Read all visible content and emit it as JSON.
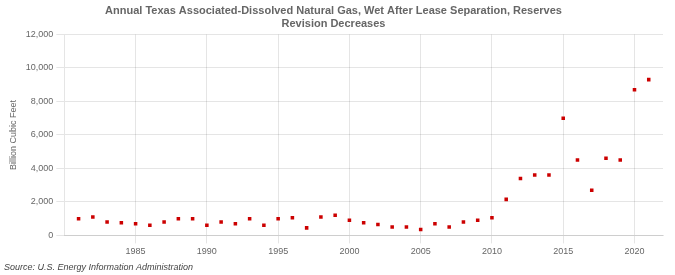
{
  "chart_data": {
    "type": "scatter",
    "title": "Annual Texas Associated-Dissolved Natural Gas, Wet After Lease Separation, Reserves\nRevision Decreases",
    "ylabel": "Billion Cubic Feet",
    "annotations": [
      "Source: U.S. Energy Information Administration"
    ],
    "x": [
      1981,
      1982,
      1983,
      1984,
      1985,
      1986,
      1987,
      1988,
      1989,
      1990,
      1991,
      1992,
      1993,
      1994,
      1995,
      1996,
      1997,
      1998,
      1999,
      2000,
      2001,
      2002,
      2003,
      2004,
      2005,
      2006,
      2007,
      2008,
      2009,
      2010,
      2011,
      2012,
      2013,
      2014,
      2015,
      2016,
      2017,
      2018,
      2019,
      2020,
      2021
    ],
    "values": [
      1000,
      1100,
      800,
      750,
      700,
      600,
      800,
      1000,
      1000,
      600,
      800,
      700,
      1000,
      600,
      1000,
      1050,
      450,
      1100,
      1200,
      900,
      750,
      650,
      500,
      500,
      350,
      700,
      500,
      800,
      900,
      1050,
      2150,
      3400,
      3600,
      3600,
      7000,
      4500,
      2700,
      4600,
      4500,
      8700,
      9300
    ],
    "color": "#cc0000",
    "marker": "square",
    "xlim": [
      1980,
      2022
    ],
    "xticks": [
      1985,
      1990,
      1995,
      2000,
      2005,
      2010,
      2015,
      2020
    ],
    "ylim": [
      0,
      12000
    ],
    "yticks": [
      0,
      {
        "value": 2000,
        "label": "2,000"
      },
      {
        "value": 4000,
        "label": "4,000"
      },
      {
        "value": 6000,
        "label": "6,000"
      },
      {
        "value": 8000,
        "label": "8,000"
      },
      {
        "value": 10000,
        "label": "10,000"
      },
      {
        "value": 12000,
        "label": "12,000"
      }
    ],
    "grid": true
  }
}
